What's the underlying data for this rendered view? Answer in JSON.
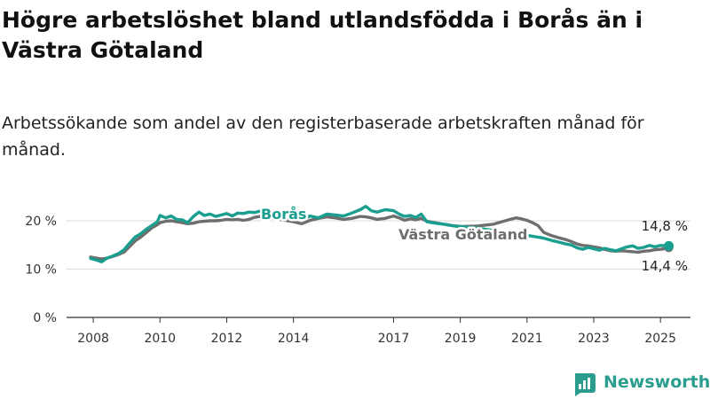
{
  "title": "Högre arbetslöshet bland utlandsfödda i Borås än i Västra Götaland",
  "subtitle": "Arbetssökande som andel av den registerbaserade arbetskraften månad för månad.",
  "brand": {
    "name": "Newsworthy",
    "icon": "newsworthy-logo-icon",
    "color": "#2a9d8f"
  },
  "chart_data": {
    "type": "line",
    "x_ticks": [
      "2008",
      "2010",
      "2012",
      "2014",
      "2017",
      "2019",
      "2021",
      "2023",
      "2025"
    ],
    "y_ticks": [
      "0 %",
      "10 %",
      "20 %"
    ],
    "ylim": [
      0,
      20
    ],
    "xlim": [
      2007.2,
      2025.9
    ],
    "grid": "horizontal",
    "series": [
      {
        "name": "Borås",
        "color": "#1a9e8f",
        "end_label": "14,8 %",
        "points": [
          [
            2007.92,
            12.2
          ],
          [
            2008.08,
            11.9
          ],
          [
            2008.25,
            11.5
          ],
          [
            2008.42,
            12.3
          ],
          [
            2008.58,
            12.7
          ],
          [
            2008.75,
            13.2
          ],
          [
            2008.92,
            14.0
          ],
          [
            2009.08,
            15.3
          ],
          [
            2009.25,
            16.6
          ],
          [
            2009.42,
            17.3
          ],
          [
            2009.58,
            18.2
          ],
          [
            2009.75,
            19.0
          ],
          [
            2009.92,
            19.8
          ],
          [
            2010.0,
            21.1
          ],
          [
            2010.17,
            20.6
          ],
          [
            2010.33,
            21.0
          ],
          [
            2010.5,
            20.3
          ],
          [
            2010.67,
            20.2
          ],
          [
            2010.83,
            19.6
          ],
          [
            2011.0,
            20.9
          ],
          [
            2011.17,
            21.8
          ],
          [
            2011.33,
            21.1
          ],
          [
            2011.5,
            21.4
          ],
          [
            2011.67,
            20.9
          ],
          [
            2011.83,
            21.2
          ],
          [
            2012.0,
            21.5
          ],
          [
            2012.17,
            21.0
          ],
          [
            2012.33,
            21.6
          ],
          [
            2012.5,
            21.5
          ],
          [
            2012.67,
            21.8
          ],
          [
            2012.83,
            21.7
          ],
          [
            2013.0,
            22.0
          ],
          [
            2013.25,
            21.5
          ],
          [
            2013.5,
            21.2
          ],
          [
            2013.75,
            20.8
          ],
          [
            2014.0,
            20.5
          ],
          [
            2014.25,
            20.2
          ],
          [
            2014.5,
            21.0
          ],
          [
            2014.75,
            20.6
          ],
          [
            2015.0,
            21.4
          ],
          [
            2015.25,
            21.2
          ],
          [
            2015.5,
            21.0
          ],
          [
            2015.75,
            21.6
          ],
          [
            2016.0,
            22.3
          ],
          [
            2016.17,
            23.0
          ],
          [
            2016.33,
            22.1
          ],
          [
            2016.5,
            21.8
          ],
          [
            2016.75,
            22.3
          ],
          [
            2017.0,
            22.1
          ],
          [
            2017.17,
            21.4
          ],
          [
            2017.33,
            20.9
          ],
          [
            2017.5,
            21.1
          ],
          [
            2017.67,
            20.7
          ],
          [
            2017.83,
            21.4
          ],
          [
            2018.0,
            19.8
          ],
          [
            2018.25,
            19.5
          ],
          [
            2018.5,
            19.3
          ],
          [
            2018.75,
            19.0
          ],
          [
            2019.0,
            18.8
          ],
          [
            2019.5,
            18.5
          ],
          [
            2020.0,
            18.0
          ],
          [
            2020.5,
            17.5
          ],
          [
            2021.0,
            17.0
          ],
          [
            2021.5,
            16.4
          ],
          [
            2021.75,
            15.9
          ],
          [
            2022.0,
            15.5
          ],
          [
            2022.17,
            15.2
          ],
          [
            2022.33,
            15.0
          ],
          [
            2022.5,
            14.4
          ],
          [
            2022.67,
            14.1
          ],
          [
            2022.83,
            14.5
          ],
          [
            2023.0,
            14.2
          ],
          [
            2023.17,
            13.9
          ],
          [
            2023.33,
            14.3
          ],
          [
            2023.5,
            14.0
          ],
          [
            2023.67,
            13.8
          ],
          [
            2023.83,
            14.2
          ],
          [
            2024.0,
            14.6
          ],
          [
            2024.17,
            14.8
          ],
          [
            2024.33,
            14.3
          ],
          [
            2024.5,
            14.5
          ],
          [
            2024.67,
            14.9
          ],
          [
            2024.83,
            14.6
          ],
          [
            2025.0,
            14.9
          ],
          [
            2025.17,
            14.8
          ],
          [
            2025.25,
            14.8
          ]
        ]
      },
      {
        "name": "Västra Götaland",
        "color": "#6e6e6e",
        "end_label": "14,4 %",
        "points": [
          [
            2007.92,
            12.5
          ],
          [
            2008.08,
            12.3
          ],
          [
            2008.25,
            12.1
          ],
          [
            2008.42,
            12.3
          ],
          [
            2008.58,
            12.6
          ],
          [
            2008.75,
            13.0
          ],
          [
            2008.92,
            13.5
          ],
          [
            2009.08,
            14.6
          ],
          [
            2009.25,
            15.8
          ],
          [
            2009.42,
            16.6
          ],
          [
            2009.58,
            17.5
          ],
          [
            2009.75,
            18.5
          ],
          [
            2009.92,
            19.2
          ],
          [
            2010.0,
            19.6
          ],
          [
            2010.17,
            19.9
          ],
          [
            2010.33,
            20.0
          ],
          [
            2010.5,
            19.8
          ],
          [
            2010.67,
            19.6
          ],
          [
            2010.83,
            19.4
          ],
          [
            2011.0,
            19.5
          ],
          [
            2011.17,
            19.8
          ],
          [
            2011.33,
            19.9
          ],
          [
            2011.5,
            20.0
          ],
          [
            2011.67,
            20.0
          ],
          [
            2011.83,
            20.1
          ],
          [
            2012.0,
            20.3
          ],
          [
            2012.17,
            20.2
          ],
          [
            2012.33,
            20.3
          ],
          [
            2012.5,
            20.1
          ],
          [
            2012.67,
            20.3
          ],
          [
            2012.83,
            20.7
          ],
          [
            2013.0,
            20.9
          ],
          [
            2013.25,
            20.6
          ],
          [
            2013.5,
            20.4
          ],
          [
            2013.75,
            20.1
          ],
          [
            2014.0,
            19.8
          ],
          [
            2014.25,
            19.4
          ],
          [
            2014.5,
            20.1
          ],
          [
            2014.75,
            20.5
          ],
          [
            2015.0,
            20.8
          ],
          [
            2015.25,
            20.6
          ],
          [
            2015.5,
            20.3
          ],
          [
            2015.75,
            20.5
          ],
          [
            2016.0,
            20.9
          ],
          [
            2016.17,
            20.8
          ],
          [
            2016.33,
            20.6
          ],
          [
            2016.5,
            20.3
          ],
          [
            2016.75,
            20.5
          ],
          [
            2017.0,
            21.0
          ],
          [
            2017.17,
            20.6
          ],
          [
            2017.33,
            20.1
          ],
          [
            2017.5,
            20.4
          ],
          [
            2017.67,
            20.2
          ],
          [
            2017.83,
            20.5
          ],
          [
            2018.0,
            19.9
          ],
          [
            2018.25,
            19.6
          ],
          [
            2018.5,
            19.3
          ],
          [
            2018.75,
            19.0
          ],
          [
            2019.0,
            18.8
          ],
          [
            2019.5,
            18.9
          ],
          [
            2020.0,
            19.3
          ],
          [
            2020.5,
            20.3
          ],
          [
            2020.67,
            20.6
          ],
          [
            2020.83,
            20.4
          ],
          [
            2021.0,
            20.1
          ],
          [
            2021.17,
            19.6
          ],
          [
            2021.33,
            19.0
          ],
          [
            2021.5,
            17.6
          ],
          [
            2021.75,
            16.9
          ],
          [
            2022.0,
            16.4
          ],
          [
            2022.17,
            16.1
          ],
          [
            2022.33,
            15.7
          ],
          [
            2022.5,
            15.2
          ],
          [
            2022.67,
            14.9
          ],
          [
            2022.83,
            14.8
          ],
          [
            2023.0,
            14.6
          ],
          [
            2023.17,
            14.4
          ],
          [
            2023.33,
            14.1
          ],
          [
            2023.5,
            13.8
          ],
          [
            2023.67,
            13.7
          ],
          [
            2023.83,
            13.8
          ],
          [
            2024.0,
            13.7
          ],
          [
            2024.17,
            13.6
          ],
          [
            2024.33,
            13.5
          ],
          [
            2024.5,
            13.7
          ],
          [
            2024.67,
            13.8
          ],
          [
            2024.83,
            14.0
          ],
          [
            2025.0,
            14.1
          ],
          [
            2025.17,
            14.3
          ],
          [
            2025.25,
            14.4
          ]
        ]
      }
    ]
  }
}
